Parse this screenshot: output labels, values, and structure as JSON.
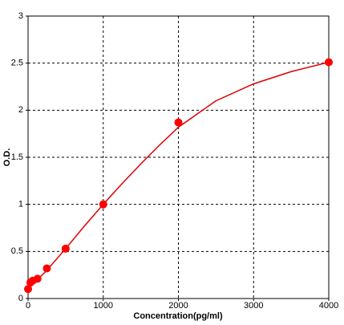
{
  "chart_data": {
    "type": "scatter",
    "x_label": "Concentration(pg/ml)",
    "y_label": "O.D.",
    "x": [
      0,
      31.25,
      62.5,
      125,
      250,
      500,
      1000,
      2000,
      4000
    ],
    "values": [
      0.1,
      0.17,
      0.19,
      0.21,
      0.32,
      0.53,
      1.0,
      1.87,
      2.51
    ],
    "color": "#ff0000",
    "fit": {
      "type": "line",
      "color": "#dd0000",
      "x": [
        0,
        125,
        250,
        500,
        750,
        1000,
        1250,
        1500,
        1750,
        2000,
        2500,
        3000,
        3500,
        4000
      ],
      "values": [
        0.1,
        0.2,
        0.3,
        0.53,
        0.77,
        1.0,
        1.22,
        1.43,
        1.63,
        1.82,
        2.1,
        2.28,
        2.41,
        2.51
      ]
    },
    "xlim": [
      0,
      4000
    ],
    "xticks": [
      0,
      1000,
      2000,
      3000,
      4000
    ],
    "ylim": [
      0,
      3
    ],
    "yticks": [
      0,
      0.5,
      1,
      1.5,
      2,
      2.5,
      3
    ],
    "grid": true
  }
}
